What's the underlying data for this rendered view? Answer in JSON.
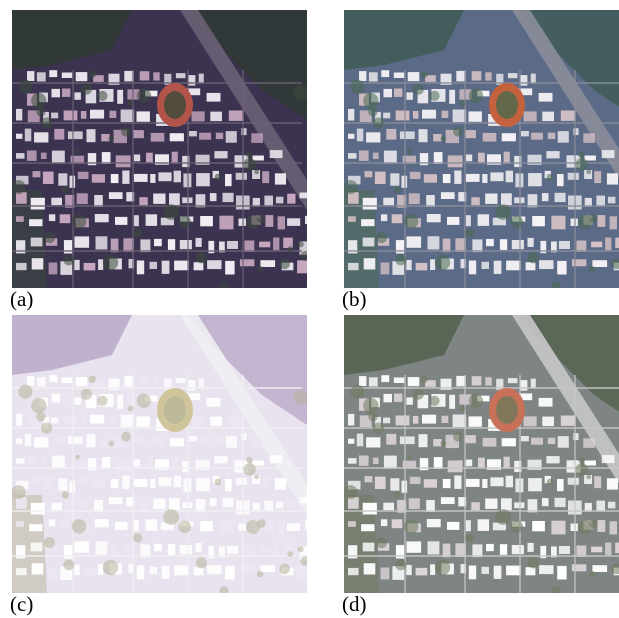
{
  "figure": {
    "panels": [
      {
        "id": "a",
        "caption": "(a)",
        "description_style": "dark",
        "colors": {
          "base": "#3b3350",
          "veg": "#2f3a34",
          "road": "#6c6174",
          "roof": "#f2eef4",
          "roof2": "#c9a9c1",
          "field": "#b3544a",
          "green": "#3a4a3a"
        }
      },
      {
        "id": "b",
        "caption": "(b)",
        "description_style": "colorful",
        "colors": {
          "base": "#5b6a86",
          "veg": "#3f5b55",
          "road": "#8a8d9a",
          "roof": "#f5f3f6",
          "roof2": "#d6c2c6",
          "field": "#c5623e",
          "green": "#4a6a4e"
        }
      },
      {
        "id": "c",
        "caption": "(c)",
        "description_style": "washed",
        "colors": {
          "base": "#e9e3ef",
          "veg": "#b9a8c8",
          "road": "#f0eef2",
          "roof": "#ffffff",
          "roof2": "#ece6f2",
          "field": "#cfc49a",
          "green": "#b7b59a"
        }
      },
      {
        "id": "d",
        "caption": "(d)",
        "description_style": "balanced",
        "colors": {
          "base": "#7f8584",
          "veg": "#54604c",
          "road": "#c7c6c8",
          "roof": "#ffffff",
          "roof2": "#dfd6db",
          "field": "#c87158",
          "green": "#6f7a5c"
        }
      }
    ]
  }
}
